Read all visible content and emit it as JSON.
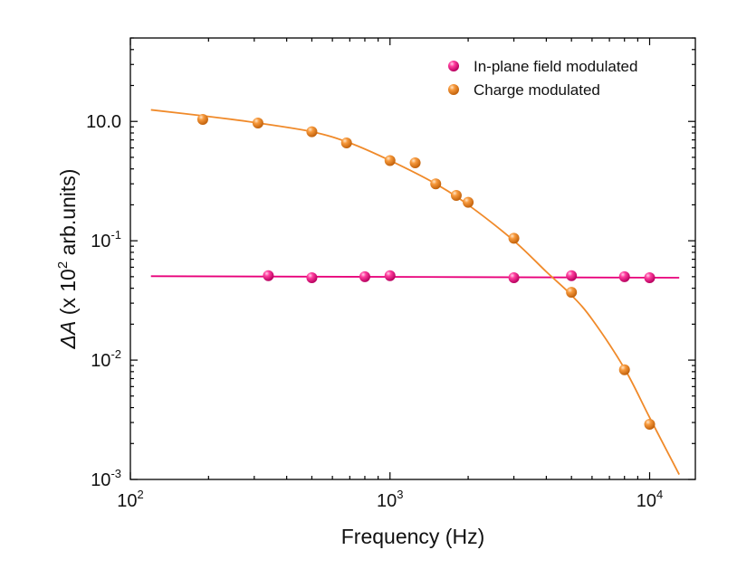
{
  "chart_data": {
    "type": "scatter",
    "xscale": "log",
    "yscale": "log",
    "xlim": [
      100,
      15000
    ],
    "ylim": [
      0.001,
      5
    ],
    "xlabel": "Frequency (Hz)",
    "ylabel": {
      "delta": "ΔA",
      "open": " (x 10",
      "exp": "2",
      "rest": " arb.units)"
    },
    "xticks": [
      {
        "value": 100,
        "base": "10",
        "exp": "2"
      },
      {
        "value": 1000,
        "base": "10",
        "exp": "3"
      },
      {
        "value": 10000,
        "base": "10",
        "exp": "4"
      }
    ],
    "yticks": [
      {
        "value": 0.001,
        "base": "10",
        "exp": "-3"
      },
      {
        "value": 0.01,
        "base": "10",
        "exp": "-2"
      },
      {
        "value": 0.1,
        "base": "10",
        "exp": "-1"
      },
      {
        "value": 1,
        "base": "10",
        "exp": "0",
        "plain": "10",
        "suffix": "0"
      }
    ],
    "legend": {
      "position": "top-right"
    },
    "grid": false,
    "series": [
      {
        "name": "In-plane field modulated",
        "color": "#e8007a",
        "points": [
          {
            "x": 340,
            "y": 0.051
          },
          {
            "x": 500,
            "y": 0.049
          },
          {
            "x": 800,
            "y": 0.05
          },
          {
            "x": 1000,
            "y": 0.051
          },
          {
            "x": 3000,
            "y": 0.049
          },
          {
            "x": 5000,
            "y": 0.051
          },
          {
            "x": 8000,
            "y": 0.05
          },
          {
            "x": 10000,
            "y": 0.049
          }
        ],
        "fit": [
          {
            "x": 120,
            "y": 0.0505
          },
          {
            "x": 13000,
            "y": 0.049
          }
        ]
      },
      {
        "name": "Charge modulated",
        "color": "#f08a2a",
        "points": [
          {
            "x": 190,
            "y": 1.04
          },
          {
            "x": 310,
            "y": 0.97
          },
          {
            "x": 500,
            "y": 0.82
          },
          {
            "x": 680,
            "y": 0.66
          },
          {
            "x": 1000,
            "y": 0.47
          },
          {
            "x": 1250,
            "y": 0.45
          },
          {
            "x": 1500,
            "y": 0.3
          },
          {
            "x": 1800,
            "y": 0.24
          },
          {
            "x": 2000,
            "y": 0.21
          },
          {
            "x": 3000,
            "y": 0.105
          },
          {
            "x": 5000,
            "y": 0.037
          },
          {
            "x": 8000,
            "y": 0.0083
          },
          {
            "x": 10000,
            "y": 0.0029
          }
        ],
        "fit": [
          {
            "x": 120,
            "y": 1.25
          },
          {
            "x": 200,
            "y": 1.1
          },
          {
            "x": 300,
            "y": 0.98
          },
          {
            "x": 500,
            "y": 0.82
          },
          {
            "x": 700,
            "y": 0.66
          },
          {
            "x": 1000,
            "y": 0.47
          },
          {
            "x": 1500,
            "y": 0.3
          },
          {
            "x": 2000,
            "y": 0.2
          },
          {
            "x": 3000,
            "y": 0.1
          },
          {
            "x": 4000,
            "y": 0.055
          },
          {
            "x": 5000,
            "y": 0.035
          },
          {
            "x": 6000,
            "y": 0.022
          },
          {
            "x": 8000,
            "y": 0.0085
          },
          {
            "x": 10000,
            "y": 0.0033
          },
          {
            "x": 13000,
            "y": 0.0011
          }
        ]
      }
    ]
  }
}
